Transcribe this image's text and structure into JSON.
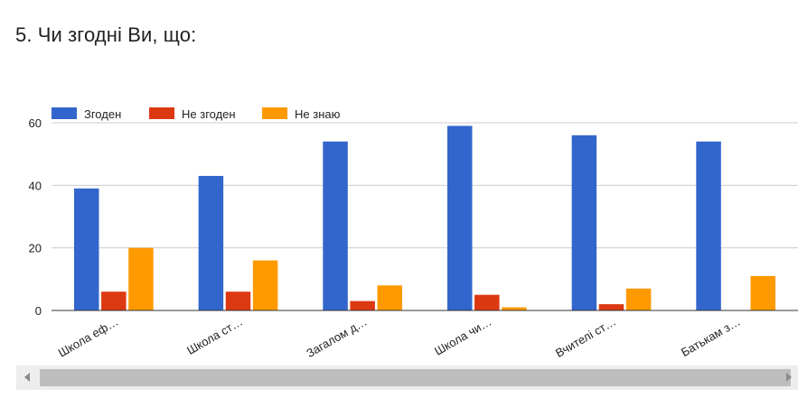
{
  "question": {
    "title": "5. Чи згодні Ви, що:"
  },
  "colors": {
    "series": [
      "#3366cc",
      "#dc3912",
      "#ff9900"
    ],
    "grid": "#cccccc",
    "axis": "#333333",
    "text": "#222222"
  },
  "scrollbar": {
    "left_icon": "chevron-left-icon",
    "right_icon": "chevron-right-icon"
  },
  "chart_data": {
    "type": "bar",
    "title": "",
    "xlabel": "",
    "ylabel": "",
    "ylim": [
      0,
      60
    ],
    "yticks": [
      0,
      20,
      40,
      60
    ],
    "grid": true,
    "legend": "top-left",
    "categories": [
      "Школа еф…",
      "Школа ст…",
      "Загалом д…",
      "Школа чи…",
      "Вчителі ст…",
      "Батькам з…"
    ],
    "series": [
      {
        "name": "Згоден",
        "values": [
          39,
          43,
          54,
          59,
          56,
          54
        ]
      },
      {
        "name": "Не згоден",
        "values": [
          6,
          6,
          3,
          5,
          2,
          0
        ]
      },
      {
        "name": "Не знаю",
        "values": [
          20,
          16,
          8,
          1,
          7,
          11
        ]
      }
    ]
  }
}
